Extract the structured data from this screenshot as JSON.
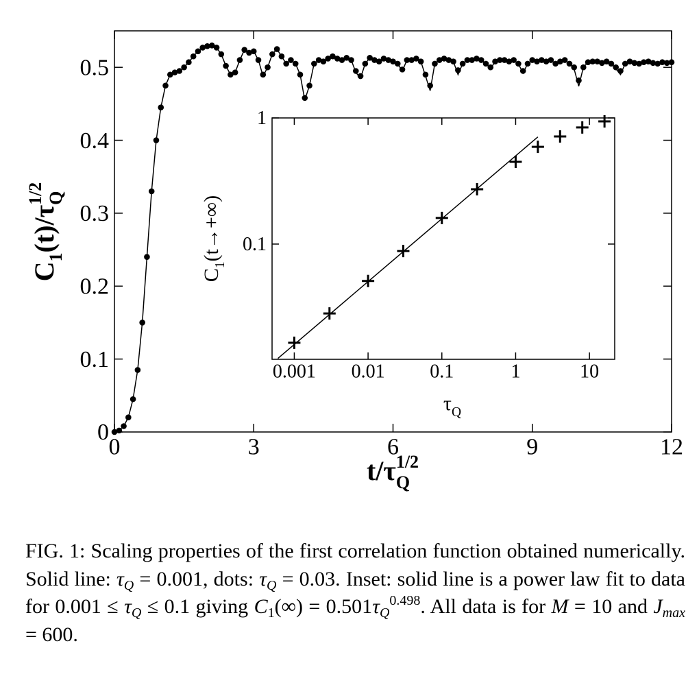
{
  "chart_data": [
    {
      "type": "line",
      "xlabel": [
        "t/τ",
        "Q",
        "1/2"
      ],
      "ylabel": [
        "C",
        "1",
        "(t)/τ",
        "Q",
        "1/2"
      ],
      "xlim": [
        0,
        12
      ],
      "ylim": [
        0,
        0.55
      ],
      "xticks": [
        0,
        3,
        6,
        9,
        12
      ],
      "yticks": [
        0,
        0.1,
        0.2,
        0.3,
        0.4,
        0.5
      ],
      "x": [
        0,
        0.1,
        0.2,
        0.3,
        0.4,
        0.5,
        0.6,
        0.7,
        0.8,
        0.9,
        1,
        1.1,
        1.2,
        1.3,
        1.4,
        1.5,
        1.6,
        1.7,
        1.8,
        1.9,
        2,
        2.1,
        2.2,
        2.3,
        2.4,
        2.5,
        2.6,
        2.7,
        2.8,
        2.9,
        3,
        3.1,
        3.2,
        3.3,
        3.4,
        3.5,
        3.6,
        3.7,
        3.8,
        3.9,
        4,
        4.1,
        4.2,
        4.3,
        4.4,
        4.5,
        4.6,
        4.7,
        4.8,
        4.9,
        5,
        5.1,
        5.2,
        5.3,
        5.4,
        5.5,
        5.6,
        5.7,
        5.8,
        5.9,
        6,
        6.1,
        6.2,
        6.3,
        6.4,
        6.5,
        6.6,
        6.7,
        6.8,
        6.9,
        7,
        7.1,
        7.2,
        7.3,
        7.4,
        7.5,
        7.6,
        7.7,
        7.8,
        7.9,
        8,
        8.1,
        8.2,
        8.3,
        8.4,
        8.5,
        8.6,
        8.7,
        8.8,
        8.9,
        9,
        9.1,
        9.2,
        9.3,
        9.4,
        9.5,
        9.6,
        9.7,
        9.8,
        9.9,
        10,
        10.1,
        10.2,
        10.3,
        10.4,
        10.5,
        10.6,
        10.7,
        10.8,
        10.9,
        11,
        11.1,
        11.2,
        11.3,
        11.4,
        11.5,
        11.6,
        11.7,
        11.8,
        11.9,
        12
      ],
      "series": [
        {
          "color": "#000000",
          "style": "line",
          "values": [
            0,
            0.002,
            0.008,
            0.02,
            0.045,
            0.085,
            0.15,
            0.24,
            0.33,
            0.4,
            0.445,
            0.475,
            0.49,
            0.493,
            0.495,
            0.5,
            0.507,
            0.515,
            0.522,
            0.527,
            0.529,
            0.53,
            0.527,
            0.518,
            0.502,
            0.49,
            0.493,
            0.51,
            0.524,
            0.52,
            0.522,
            0.51,
            0.488,
            0.5,
            0.518,
            0.525,
            0.515,
            0.505,
            0.51,
            0.505,
            0.49,
            0.455,
            0.475,
            0.505,
            0.51,
            0.508,
            0.512,
            0.515,
            0.512,
            0.51,
            0.513,
            0.51,
            0.493,
            0.485,
            0.505,
            0.513,
            0.51,
            0.508,
            0.512,
            0.51,
            0.508,
            0.505,
            0.495,
            0.51,
            0.51,
            0.512,
            0.508,
            0.488,
            0.468,
            0.505,
            0.51,
            0.512,
            0.51,
            0.508,
            0.49,
            0.505,
            0.51,
            0.51,
            0.512,
            0.51,
            0.505,
            0.498,
            0.508,
            0.51,
            0.51,
            0.508,
            0.51,
            0.505,
            0.492,
            0.505,
            0.51,
            0.508,
            0.51,
            0.508,
            0.51,
            0.505,
            0.508,
            0.51,
            0.505,
            0.498,
            0.474,
            0.5,
            0.507,
            0.508,
            0.508,
            0.506,
            0.508,
            0.505,
            0.498,
            0.49,
            0.505,
            0.508,
            0.506,
            0.505,
            0.507,
            0.508,
            0.506,
            0.505,
            0.507,
            0.506,
            0.507
          ]
        },
        {
          "color": "#000000",
          "style": "dots",
          "values": [
            0,
            0.002,
            0.008,
            0.02,
            0.045,
            0.085,
            0.15,
            0.24,
            0.33,
            0.4,
            0.445,
            0.475,
            0.49,
            0.493,
            0.495,
            0.5,
            0.507,
            0.515,
            0.522,
            0.527,
            0.529,
            0.53,
            0.527,
            0.518,
            0.502,
            0.49,
            0.493,
            0.51,
            0.524,
            0.52,
            0.522,
            0.51,
            0.49,
            0.5,
            0.518,
            0.525,
            0.515,
            0.505,
            0.51,
            0.505,
            0.49,
            0.458,
            0.475,
            0.505,
            0.51,
            0.508,
            0.512,
            0.515,
            0.512,
            0.51,
            0.513,
            0.51,
            0.495,
            0.488,
            0.505,
            0.513,
            0.51,
            0.508,
            0.512,
            0.51,
            0.508,
            0.505,
            0.497,
            0.51,
            0.51,
            0.512,
            0.508,
            0.49,
            0.475,
            0.505,
            0.51,
            0.512,
            0.51,
            0.508,
            0.496,
            0.505,
            0.51,
            0.51,
            0.512,
            0.51,
            0.505,
            0.5,
            0.508,
            0.51,
            0.51,
            0.508,
            0.51,
            0.505,
            0.495,
            0.505,
            0.51,
            0.508,
            0.51,
            0.508,
            0.51,
            0.505,
            0.508,
            0.51,
            0.505,
            0.5,
            0.482,
            0.5,
            0.507,
            0.508,
            0.508,
            0.506,
            0.508,
            0.505,
            0.5,
            0.495,
            0.505,
            0.508,
            0.506,
            0.505,
            0.507,
            0.508,
            0.506,
            0.505,
            0.507,
            0.506,
            0.507
          ]
        }
      ]
    },
    {
      "type": "scatter",
      "xlabel": [
        "τ",
        "Q"
      ],
      "ylabel": [
        "C",
        "1",
        "(t→+∞)"
      ],
      "xscale": "log",
      "yscale": "log",
      "xlim": [
        0.0005,
        22
      ],
      "ylim": [
        0.0122,
        1
      ],
      "xticks": [
        0.001,
        0.01,
        0.1,
        1,
        10
      ],
      "yticks": [
        0.1,
        1
      ],
      "series": [
        {
          "color": "#000000",
          "style": "plus",
          "x": [
            0.001,
            0.003,
            0.01,
            0.03,
            0.1,
            0.3,
            1,
            2,
            4,
            8,
            16
          ],
          "values": [
            0.0165,
            0.0282,
            0.051,
            0.088,
            0.161,
            0.272,
            0.449,
            0.59,
            0.713,
            0.84,
            0.94
          ]
        },
        {
          "color": "#000000",
          "style": "line",
          "x": [
            0.0006,
            2
          ],
          "values": [
            0.0124,
            0.707
          ]
        }
      ]
    }
  ],
  "caption": [
    "FIG. 1: Scaling properties of the first correlation function obtained numerically. Solid line: ",
    "τ",
    "Q",
    " = 0.001, dots: ",
    "τ",
    "Q",
    " = 0.03. Inset: solid line is a power law fit to data for 0.001 ≤ ",
    "τ",
    "Q",
    " ≤ 0.1 giving ",
    "C",
    "1",
    "(∞) = 0.501",
    "τ",
    "Q",
    "0.498",
    ". All data is for ",
    "M",
    " = 10 and ",
    "J",
    "max",
    " = 600."
  ]
}
